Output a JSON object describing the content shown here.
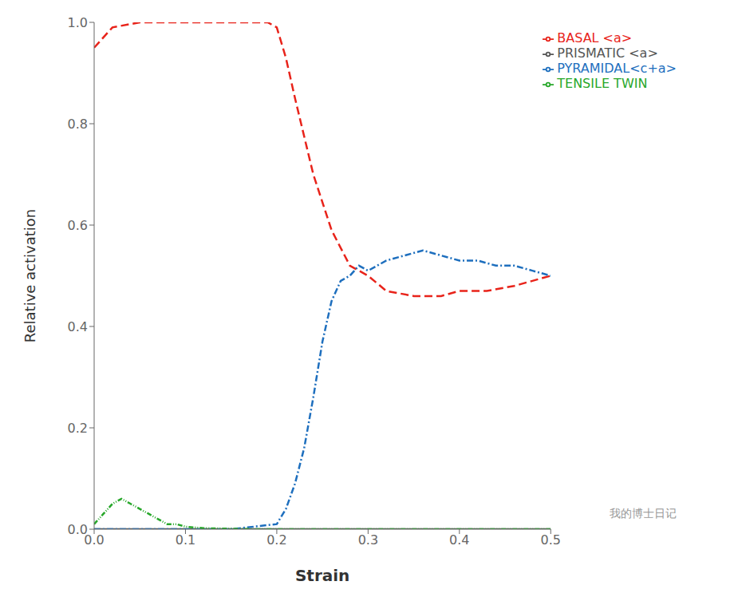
{
  "chart_data": {
    "type": "line",
    "xlabel": "Strain",
    "ylabel": "Relative activation",
    "annotation": "我的博士日记",
    "xlim": [
      0.0,
      0.5
    ],
    "ylim": [
      0.0,
      1.0
    ],
    "xticks": [
      {
        "value": 0.0,
        "label": "0.0"
      },
      0.1,
      0.2,
      0.3,
      0.4,
      0.5
    ],
    "yticks": [
      {
        "value": 0.0,
        "label": "0.0"
      },
      0.2,
      0.4,
      0.6,
      0.8,
      {
        "value": 1.0,
        "label": "1.0"
      }
    ],
    "grid": false,
    "legend": "upper right",
    "series": [
      {
        "name": "PRISMATIC <a>",
        "color": "#555555",
        "line_style": "solid",
        "x": [
          0.0,
          0.05,
          0.1,
          0.15,
          0.2,
          0.25,
          0.3,
          0.35,
          0.4,
          0.45,
          0.5
        ],
        "values": [
          0.0,
          0.0,
          0.0,
          0.0,
          0.0,
          0.0,
          0.0,
          0.0,
          0.0,
          0.0,
          0.0
        ]
      },
      {
        "name": "BASAL <a>",
        "color": "#e8231a",
        "line_style": "dashed",
        "x": [
          0.0,
          0.02,
          0.05,
          0.08,
          0.1,
          0.13,
          0.16,
          0.19,
          0.2,
          0.21,
          0.22,
          0.24,
          0.26,
          0.28,
          0.3,
          0.32,
          0.35,
          0.38,
          0.4,
          0.43,
          0.46,
          0.48,
          0.5
        ],
        "values": [
          0.95,
          0.99,
          1.0,
          1.0,
          1.0,
          1.0,
          1.0,
          1.0,
          0.99,
          0.93,
          0.85,
          0.7,
          0.59,
          0.52,
          0.5,
          0.47,
          0.46,
          0.46,
          0.47,
          0.47,
          0.48,
          0.49,
          0.5
        ]
      },
      {
        "name": "PYRAMIDAL<c+a>",
        "color": "#1e6fbe",
        "line_style": "dashdot",
        "x": [
          0.0,
          0.05,
          0.1,
          0.15,
          0.2,
          0.21,
          0.22,
          0.23,
          0.24,
          0.25,
          0.26,
          0.27,
          0.28,
          0.29,
          0.3,
          0.32,
          0.34,
          0.36,
          0.38,
          0.4,
          0.42,
          0.44,
          0.46,
          0.48,
          0.5
        ],
        "values": [
          0.0,
          0.0,
          0.0,
          0.0,
          0.01,
          0.04,
          0.09,
          0.16,
          0.26,
          0.37,
          0.45,
          0.49,
          0.5,
          0.52,
          0.51,
          0.53,
          0.54,
          0.55,
          0.54,
          0.53,
          0.53,
          0.52,
          0.52,
          0.51,
          0.5
        ]
      },
      {
        "name": "TENSILE TWIN",
        "color": "#27a72a",
        "line_style": "dashdotdot",
        "x": [
          0.0,
          0.01,
          0.02,
          0.03,
          0.04,
          0.05,
          0.06,
          0.07,
          0.08,
          0.09,
          0.1,
          0.12,
          0.15,
          0.18,
          0.2,
          0.25,
          0.3,
          0.35,
          0.4,
          0.45,
          0.5
        ],
        "values": [
          0.01,
          0.03,
          0.05,
          0.06,
          0.05,
          0.04,
          0.03,
          0.02,
          0.01,
          0.01,
          0.005,
          0.002,
          0.001,
          0.0,
          0.0,
          0.0,
          0.0,
          0.0,
          0.0,
          0.0,
          0.0
        ]
      }
    ]
  }
}
